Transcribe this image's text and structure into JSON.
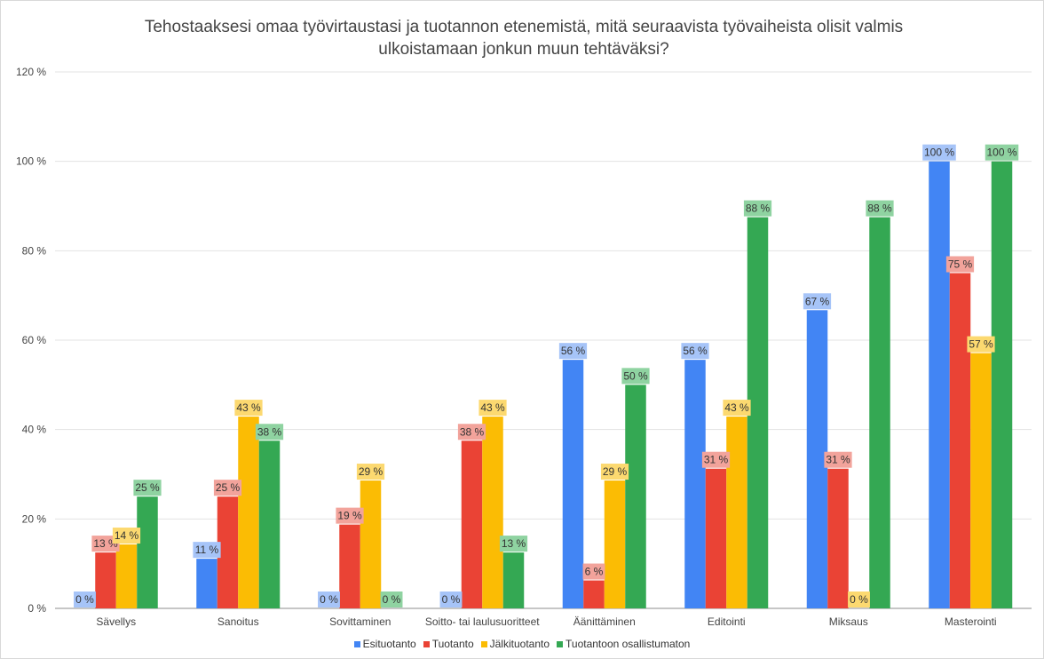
{
  "chart_data": {
    "type": "bar",
    "title_lines": [
      "Tehostaaksesi omaa työvirtaustasi ja tuotannon etenemistä, mitä seuraavista työvaiheista olisit valmis",
      "ulkoistamaan jonkun muun tehtäväksi?"
    ],
    "categories": [
      "Sävellys",
      "Sanoitus",
      "Sovittaminen",
      "Soitto- tai laulusuoritteet",
      "Äänittäminen",
      "Editointi",
      "Miksaus",
      "Masterointi"
    ],
    "ylim": [
      0,
      120
    ],
    "yticks": [
      "0 %",
      "20 %",
      "40 %",
      "60 %",
      "80 %",
      "100 %",
      "120 %"
    ],
    "ytick_values": [
      0,
      20,
      40,
      60,
      80,
      100,
      120
    ],
    "grid": true,
    "legend_position": "bottom",
    "series": [
      {
        "name": "Esituotanto",
        "color": "#4285f4",
        "label_bg": "#a6c4f8",
        "values": [
          0,
          11.1,
          0,
          0,
          55.6,
          55.6,
          66.7,
          100
        ],
        "labels": [
          "0 %",
          "11 %",
          "0 %",
          "0 %",
          "56 %",
          "56 %",
          "67 %",
          "100 %"
        ]
      },
      {
        "name": "Tuotanto",
        "color": "#ea4335",
        "label_bg": "#f2a39b",
        "values": [
          12.5,
          25,
          18.75,
          37.5,
          6.25,
          31.25,
          31.25,
          75
        ],
        "labels": [
          "13 %",
          "25 %",
          "19 %",
          "38 %",
          "6 %",
          "31 %",
          "31 %",
          "75 %"
        ]
      },
      {
        "name": "Jälkituotanto",
        "color": "#fbbc04",
        "label_bg": "#fcd970",
        "values": [
          14.3,
          42.9,
          28.6,
          42.9,
          28.6,
          42.9,
          0,
          57.1
        ],
        "labels": [
          "14 %",
          "43 %",
          "29 %",
          "43 %",
          "29 %",
          "43 %",
          "0 %",
          "57 %"
        ]
      },
      {
        "name": "Tuotantoon osallistumaton",
        "color": "#34a853",
        "label_bg": "#8fd3a1",
        "values": [
          25,
          37.5,
          0,
          12.5,
          50,
          87.5,
          87.5,
          100
        ],
        "labels": [
          "25 %",
          "38 %",
          "0 %",
          "13 %",
          "50 %",
          "88 %",
          "88 %",
          "100 %"
        ]
      }
    ]
  }
}
